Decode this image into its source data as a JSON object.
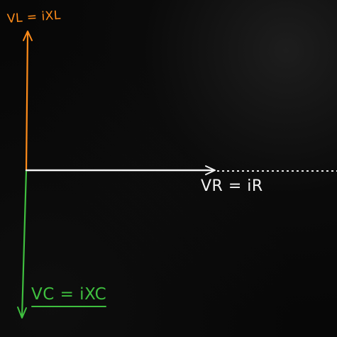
{
  "labels": {
    "inductor_voltage": "VL = iXL",
    "resistor_voltage": "VR = iR",
    "capacitor_voltage": "VC = iXC"
  },
  "colors": {
    "inductor": "#ff8c1a",
    "resistor": "#f2f2f2",
    "capacitor": "#3fbf3f",
    "background": "#070707"
  }
}
